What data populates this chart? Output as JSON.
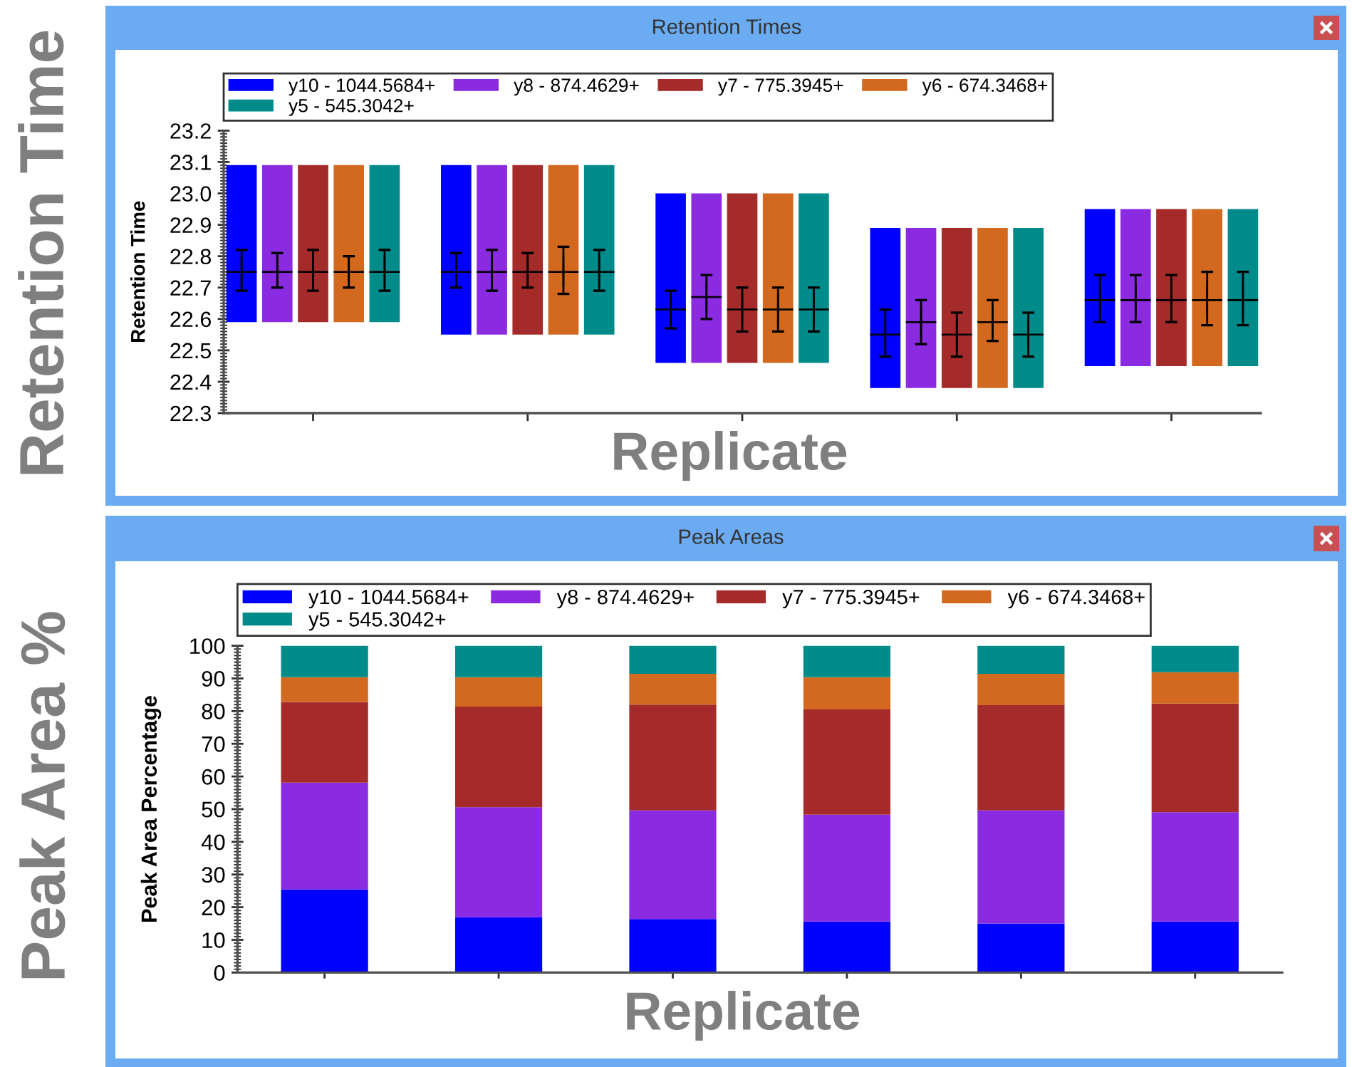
{
  "chart_data": [
    {
      "type": "bar",
      "stacked": true,
      "title": "Retention Times",
      "xlabel": "Replicate",
      "ylabel": "Retention Time",
      "annotations": [
        "Retention Time"
      ],
      "categories": [
        null,
        null,
        null,
        null,
        null,
        null,
        null,
        null,
        null,
        null,
        null,
        null,
        null,
        null,
        null,
        null,
        null,
        null,
        null,
        null,
        null,
        null,
        null,
        null,
        null,
        null,
        null,
        null,
        null
      ],
      "series": [
        {
          "name": "y10 - 1044.5684+",
          "color": "#0000ff",
          "base": [
            22.59,
            null,
            null,
            null,
            null,
            null,
            22.55,
            null,
            null,
            null,
            null,
            null,
            22.46,
            null,
            null,
            null,
            null,
            null,
            22.38,
            null,
            null,
            null,
            null,
            null,
            22.45,
            null,
            null,
            null,
            null
          ],
          "values": [
            0.5,
            null,
            null,
            null,
            null,
            null,
            0.54,
            null,
            null,
            null,
            null,
            null,
            0.54,
            null,
            null,
            null,
            null,
            null,
            0.51,
            null,
            null,
            null,
            null,
            null,
            0.5,
            null,
            null,
            null,
            null
          ]
        },
        {
          "name": "y8 - 874.4629+",
          "color": "#8a2be2",
          "base": [
            null,
            22.59,
            null,
            null,
            null,
            null,
            null,
            22.55,
            null,
            null,
            null,
            null,
            null,
            22.46,
            null,
            null,
            null,
            null,
            null,
            22.38,
            null,
            null,
            null,
            null,
            null,
            22.45,
            null,
            null,
            null
          ],
          "values": [
            null,
            0.5,
            null,
            null,
            null,
            null,
            null,
            0.54,
            null,
            null,
            null,
            null,
            null,
            0.54,
            null,
            null,
            null,
            null,
            null,
            0.51,
            null,
            null,
            null,
            null,
            null,
            0.5,
            null,
            null,
            null
          ]
        },
        {
          "name": "y7 - 775.3945+",
          "color": "#a52a2a",
          "base": [
            null,
            null,
            22.59,
            null,
            null,
            null,
            null,
            null,
            22.55,
            null,
            null,
            null,
            null,
            null,
            22.46,
            null,
            null,
            null,
            null,
            null,
            22.38,
            null,
            null,
            null,
            null,
            null,
            22.45,
            null,
            null
          ],
          "values": [
            null,
            null,
            0.5,
            null,
            null,
            null,
            null,
            null,
            0.54,
            null,
            null,
            null,
            null,
            null,
            0.54,
            null,
            null,
            null,
            null,
            null,
            0.51,
            null,
            null,
            null,
            null,
            null,
            0.5,
            null,
            null
          ]
        },
        {
          "name": "y6 - 674.3468+",
          "color": "#d2691e",
          "base": [
            null,
            null,
            null,
            22.59,
            null,
            null,
            null,
            null,
            null,
            22.55,
            null,
            null,
            null,
            null,
            null,
            22.46,
            null,
            null,
            null,
            null,
            null,
            22.38,
            null,
            null,
            null,
            null,
            null,
            22.45,
            null
          ],
          "values": [
            null,
            null,
            null,
            0.5,
            null,
            null,
            null,
            null,
            null,
            0.54,
            null,
            null,
            null,
            null,
            null,
            0.54,
            null,
            null,
            null,
            null,
            null,
            0.51,
            null,
            null,
            null,
            null,
            null,
            0.5,
            null
          ]
        },
        {
          "name": "y5 - 545.3042+",
          "color": "#008b8b",
          "base": [
            null,
            null,
            null,
            null,
            22.59,
            null,
            null,
            null,
            null,
            null,
            22.55,
            null,
            null,
            null,
            null,
            null,
            22.46,
            null,
            null,
            null,
            null,
            null,
            22.38,
            null,
            null,
            null,
            null,
            null,
            22.45
          ],
          "values": [
            null,
            null,
            null,
            null,
            0.5,
            null,
            null,
            null,
            null,
            null,
            0.54,
            null,
            null,
            null,
            null,
            null,
            0.54,
            null,
            null,
            null,
            null,
            null,
            0.51,
            null,
            null,
            null,
            null,
            null,
            0.5
          ]
        },
        {
          "type": "scatter",
          "color": "#000000",
          "marker": "cross",
          "values": [
            22.75,
            22.75,
            22.75,
            22.75,
            22.75,
            null,
            22.75,
            22.75,
            22.75,
            22.75,
            22.75,
            null,
            22.63,
            22.67,
            22.63,
            22.63,
            22.63,
            null,
            22.55,
            22.59,
            22.55,
            22.59,
            22.55,
            null,
            22.66,
            22.66,
            22.66,
            22.66,
            22.66
          ],
          "errors": [
            [
              22.69,
              22.82
            ],
            [
              22.7,
              22.81
            ],
            [
              22.69,
              22.82
            ],
            [
              22.7,
              22.8
            ],
            [
              22.69,
              22.82
            ],
            null,
            [
              22.7,
              22.81
            ],
            [
              22.69,
              22.82
            ],
            [
              22.7,
              22.81
            ],
            [
              22.68,
              22.83
            ],
            [
              22.69,
              22.82
            ],
            null,
            [
              22.57,
              22.69
            ],
            [
              22.6,
              22.74
            ],
            [
              22.56,
              22.7
            ],
            [
              22.56,
              22.7
            ],
            [
              22.56,
              22.7
            ],
            null,
            [
              22.48,
              22.63
            ],
            [
              22.52,
              22.66
            ],
            [
              22.48,
              22.62
            ],
            [
              22.53,
              22.66
            ],
            [
              22.48,
              22.62
            ],
            null,
            [
              22.59,
              22.74
            ],
            [
              22.59,
              22.74
            ],
            [
              22.59,
              22.74
            ],
            [
              22.58,
              22.75
            ],
            [
              22.58,
              22.75
            ]
          ]
        }
      ],
      "ylim": [
        22.3,
        23.2
      ],
      "yticks": [
        22.3,
        22.4,
        22.5,
        22.6,
        22.7,
        22.8,
        22.9,
        {
          "value": 23,
          "label": "23.0"
        },
        23.1,
        23.2
      ],
      "tick_labels": "y",
      "legend": "top"
    },
    {
      "type": "bar",
      "stacked": true,
      "title": "Peak Areas",
      "xlabel": "Replicate",
      "ylabel": "Peak Area Percentage",
      "annotations": [
        "Peak Area %"
      ],
      "categories": [
        null,
        null,
        null,
        null,
        null,
        null
      ],
      "series": [
        {
          "name": "y10 - 1044.5684+",
          "color": "#0000ff",
          "values": [
            25.4,
            16.9,
            16.4,
            15.6,
            15.0,
            15.6
          ]
        },
        {
          "name": "y8 - 874.4629+",
          "color": "#8a2be2",
          "values": [
            32.7,
            33.7,
            33.2,
            32.7,
            34.6,
            33.5
          ]
        },
        {
          "name": "y7 - 775.3945+",
          "color": "#a52a2a",
          "values": [
            24.7,
            30.8,
            32.4,
            32.2,
            32.2,
            33.2
          ]
        },
        {
          "name": "y6 - 674.3468+",
          "color": "#d2691e",
          "values": [
            7.6,
            9.0,
            9.4,
            9.9,
            9.6,
            9.6
          ]
        },
        {
          "name": "y5 - 545.3042+",
          "color": "#008b8b",
          "values": [
            9.6,
            9.6,
            8.6,
            9.6,
            8.6,
            8.1
          ]
        }
      ],
      "ylim": [
        0,
        100
      ],
      "yticks": [
        0,
        10,
        20,
        30,
        40,
        50,
        60,
        70,
        80,
        90,
        100
      ],
      "tick_labels": "y",
      "legend": "top"
    }
  ]
}
